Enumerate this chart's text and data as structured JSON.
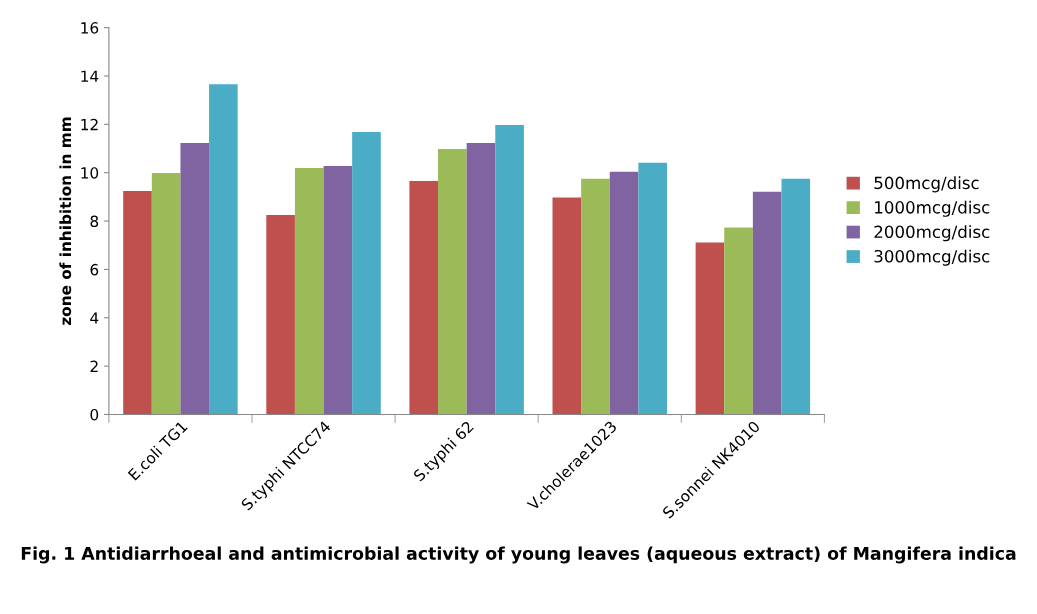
{
  "chart_data": {
    "type": "bar",
    "title": "Fig. 1 Antidiarrhoeal and antimicrobial activity of young leaves (aqueous extract) of Mangifera indica",
    "ylabel": "zone of inhibition in mm",
    "categories": [
      "E.coli TG1",
      "S.typhi NTCC74",
      "S.typhi 62",
      "V.cholerae1023",
      "S.sonnei NK4010"
    ],
    "series": [
      {
        "name": "500mcg/disc",
        "color": "#c0504d",
        "values": [
          9.24,
          8.25,
          9.66,
          8.97,
          7.11
        ]
      },
      {
        "name": "1000mcg/disc",
        "color": "#9bbb59",
        "values": [
          9.99,
          10.19,
          10.98,
          9.75,
          7.73
        ]
      },
      {
        "name": "2000mcg/disc",
        "color": "#8064a2",
        "values": [
          11.23,
          10.28,
          11.23,
          10.04,
          9.21
        ]
      },
      {
        "name": "3000mcg/disc",
        "color": "#4bacc6",
        "values": [
          13.66,
          11.68,
          11.97,
          10.41,
          9.75
        ]
      }
    ],
    "ylim": [
      0,
      16
    ],
    "yticks": [
      0,
      2,
      4,
      6,
      8,
      10,
      12,
      14,
      16
    ],
    "grid": false,
    "legend": "right"
  }
}
